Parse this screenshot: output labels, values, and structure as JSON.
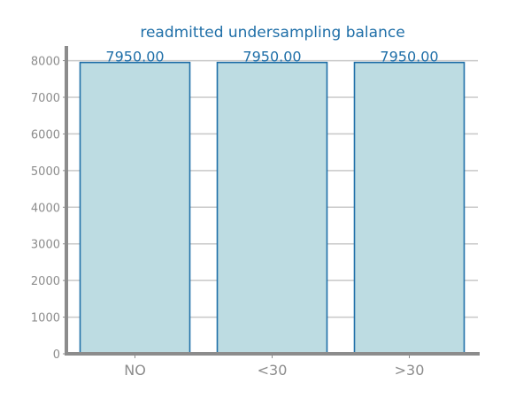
{
  "colors": {
    "title": "#1f6fa8",
    "bar_fill": "#bddce2",
    "bar_edge": "#1f6fa8",
    "data_label": "#1f6fa8",
    "grid": "#c8c8c8",
    "axis": "#8c8c8c",
    "tick_label": "#8c8c8c"
  },
  "chart_data": {
    "type": "bar",
    "title": "readmitted undersampling balance",
    "xlabel": "",
    "ylabel": "",
    "categories": [
      "NO",
      "<30",
      ">30"
    ],
    "values": [
      7950,
      7950,
      7950
    ],
    "data_labels": [
      "7950.00",
      "7950.00",
      "7950.00"
    ],
    "ylim": [
      0,
      8400
    ],
    "yticks": [
      0,
      1000,
      2000,
      3000,
      4000,
      5000,
      6000,
      7000,
      8000
    ],
    "grid": "horizontal",
    "legend": "none"
  }
}
